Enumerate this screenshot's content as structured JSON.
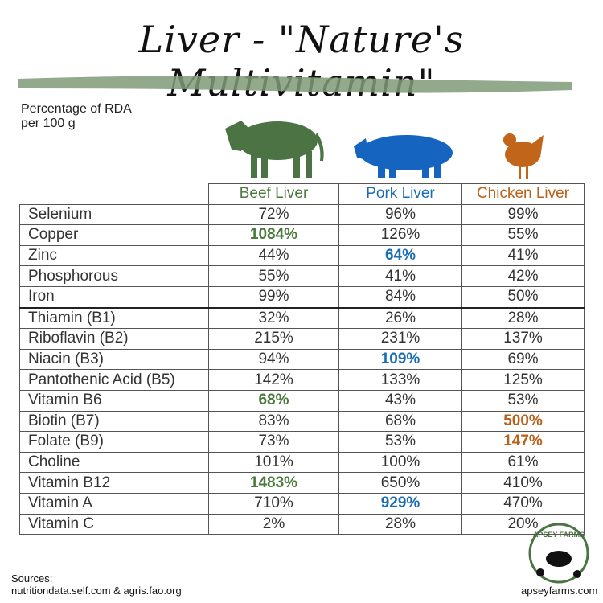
{
  "title": "Liver - \"Nature's Multivitamin\"",
  "subtitle": [
    "Percentage of RDA",
    "per 100 g"
  ],
  "table": {
    "columns": [
      {
        "label": "Beef Liver",
        "color": "#4a7a3c"
      },
      {
        "label": "Pork Liver",
        "color": "#1b6db3"
      },
      {
        "label": "Chicken Liver",
        "color": "#b9601a"
      }
    ],
    "rows": [
      [
        "Selenium",
        "72%",
        "96%",
        "99%"
      ],
      [
        "Copper",
        "1084%",
        "126%",
        "55%"
      ],
      [
        "Zinc",
        "44%",
        "64%",
        "41%"
      ],
      [
        "Phosphorous",
        "55%",
        "41%",
        "42%"
      ],
      [
        "Iron",
        "99%",
        "84%",
        "50%"
      ],
      [
        "Thiamin (B1)",
        "32%",
        "26%",
        "28%"
      ],
      [
        "Riboflavin (B2)",
        "215%",
        "231%",
        "137%"
      ],
      [
        "Niacin (B3)",
        "94%",
        "109%",
        "69%"
      ],
      [
        "Pantothenic Acid (B5)",
        "142%",
        "133%",
        "125%"
      ],
      [
        "Vitamin B6",
        "68%",
        "43%",
        "53%"
      ],
      [
        "Biotin (B7)",
        "83%",
        "68%",
        "500%"
      ],
      [
        "Folate (B9)",
        "73%",
        "53%",
        "147%"
      ],
      [
        "Choline",
        "101%",
        "100%",
        "61%"
      ],
      [
        "Vitamin B12",
        "1483%",
        "650%",
        "410%"
      ],
      [
        "Vitamin A",
        "710%",
        "929%",
        "470%"
      ],
      [
        "Vitamin C",
        "2%",
        "28%",
        "20%"
      ]
    ]
  },
  "sources": [
    "Sources:",
    "nutritiondata.self.com & agris.fao.org"
  ],
  "footer": {
    "logo": "APSEY FARMS",
    "url": "apseyfarms.com"
  }
}
